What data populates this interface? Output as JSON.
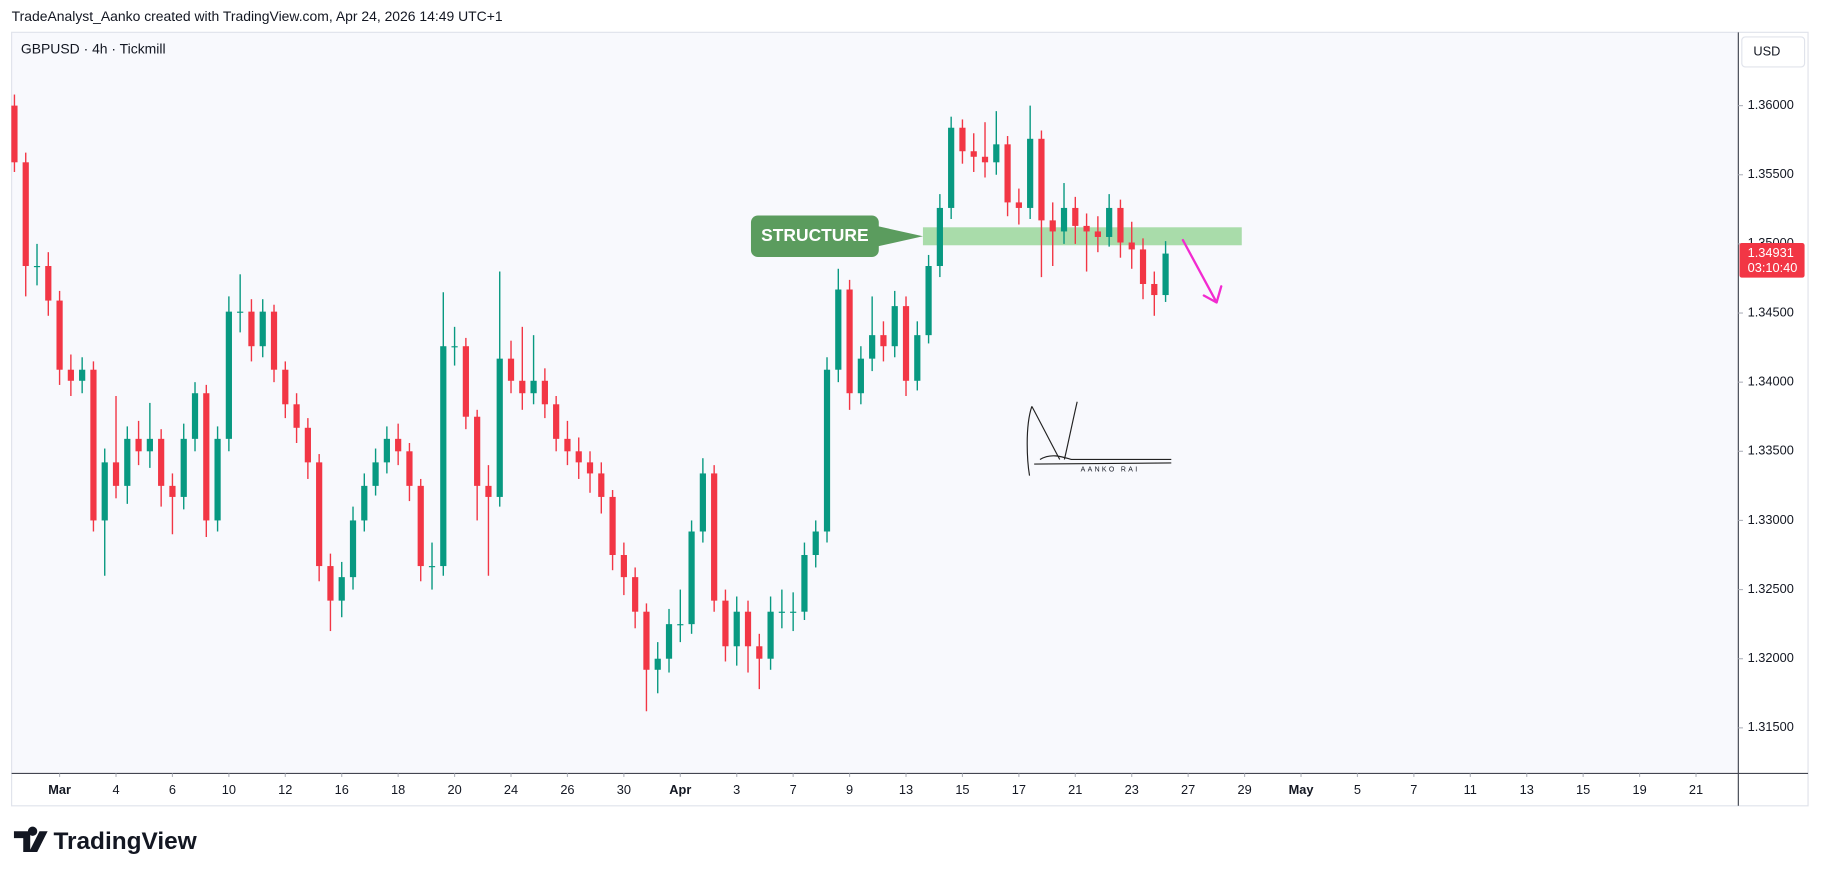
{
  "header": {
    "attribution": "TradeAnalyst_Aanko created with TradingView.com, Apr 24, 2026 14:49 UTC+1",
    "logo": "TradingView"
  },
  "chart_data": {
    "type": "candlestick",
    "title": "GBPUSD · 4h · Tickmill",
    "currency": "USD",
    "x": [
      -1.6,
      -1.2,
      -0.8,
      -0.4,
      0,
      0.4,
      0.8,
      1.2,
      1.6,
      2,
      2.4,
      2.8,
      3.2,
      3.6,
      4,
      4.4,
      4.8,
      5.2,
      5.6,
      6,
      6.4,
      6.8,
      7.2,
      7.6,
      8,
      8.4,
      8.8,
      9.2,
      9.6,
      10,
      10.4,
      10.8,
      11.2,
      11.6,
      12,
      12.4,
      12.8,
      13.2,
      13.6,
      14,
      14.4,
      14.8,
      15.2,
      15.6,
      16,
      16.4,
      16.8,
      17.2,
      17.6,
      18,
      18.4,
      18.8,
      19.2,
      19.6,
      20,
      20.4,
      20.8,
      21.2,
      21.6,
      22,
      22.4,
      22.8,
      23.2,
      23.6,
      24,
      24.4,
      24.8,
      25.2,
      25.6,
      26,
      26.4,
      26.8,
      27.2,
      27.6,
      28,
      28.4,
      28.8,
      29.2,
      29.6,
      30,
      30.4,
      30.8,
      31.2,
      31.6,
      32,
      32.4,
      32.8,
      33.2,
      33.6,
      34,
      34.4,
      34.8,
      35.2,
      35.6,
      36,
      36.4,
      36.8,
      37.2,
      37.6,
      38,
      38.4,
      38.8,
      39.2
    ],
    "open": [
      1.36,
      1.3559,
      1.3484,
      1.3484,
      1.3459,
      1.3409,
      1.3401,
      1.3409,
      1.33,
      1.3342,
      1.3325,
      1.3359,
      1.335,
      1.3359,
      1.3325,
      1.3317,
      1.3359,
      1.3392,
      1.33,
      1.3359,
      1.3451,
      1.3451,
      1.3426,
      1.3451,
      1.3409,
      1.3384,
      1.3367,
      1.3342,
      1.3267,
      1.3242,
      1.3259,
      1.33,
      1.3325,
      1.3342,
      1.3359,
      1.335,
      1.3325,
      1.3267,
      1.3267,
      1.3426,
      1.3426,
      1.3375,
      1.3325,
      1.3317,
      1.3417,
      1.3401,
      1.3392,
      1.3401,
      1.3384,
      1.3359,
      1.335,
      1.3342,
      1.3334,
      1.3317,
      1.3275,
      1.3259,
      1.3234,
      1.3192,
      1.32,
      1.3225,
      1.3225,
      1.3292,
      1.3334,
      1.3242,
      1.3209,
      1.3234,
      1.3209,
      1.32,
      1.3234,
      1.3234,
      1.3234,
      1.3275,
      1.3292,
      1.3409,
      1.3467,
      1.3392,
      1.3417,
      1.3434,
      1.3426,
      1.3455,
      1.3401,
      1.3434,
      1.3484,
      1.3526,
      1.3584,
      1.3567,
      1.3563,
      1.3559,
      1.3572,
      1.353,
      1.3526,
      1.3576,
      1.3517,
      1.3509,
      1.3526,
      1.3513,
      1.3509,
      1.3505,
      1.3526,
      1.3501,
      1.3496,
      1.3471,
      1.3463
    ],
    "high": [
      1.3608,
      1.3566,
      1.35,
      1.3494,
      1.3466,
      1.342,
      1.3418,
      1.3415,
      1.3352,
      1.339,
      1.3368,
      1.3372,
      1.3385,
      1.3366,
      1.3334,
      1.337,
      1.34,
      1.3398,
      1.3368,
      1.3462,
      1.3478,
      1.346,
      1.346,
      1.3456,
      1.3415,
      1.3392,
      1.3374,
      1.3348,
      1.3276,
      1.327,
      1.331,
      1.3334,
      1.3352,
      1.3368,
      1.337,
      1.3356,
      1.333,
      1.3284,
      1.3465,
      1.344,
      1.3432,
      1.338,
      1.334,
      1.348,
      1.343,
      1.344,
      1.3434,
      1.341,
      1.339,
      1.3372,
      1.336,
      1.335,
      1.3342,
      1.3322,
      1.3284,
      1.3266,
      1.324,
      1.3212,
      1.3236,
      1.325,
      1.33,
      1.3345,
      1.334,
      1.325,
      1.3245,
      1.3242,
      1.3218,
      1.3245,
      1.325,
      1.3248,
      1.3284,
      1.33,
      1.3418,
      1.3482,
      1.3474,
      1.3426,
      1.3462,
      1.3444,
      1.3466,
      1.3462,
      1.3444,
      1.3492,
      1.3536,
      1.3592,
      1.359,
      1.358,
      1.3588,
      1.3596,
      1.3578,
      1.354,
      1.36,
      1.3582,
      1.353,
      1.3544,
      1.3534,
      1.3522,
      1.352,
      1.3536,
      1.3532,
      1.3516,
      1.3504,
      1.348,
      1.3502
    ],
    "low": [
      1.3552,
      1.3462,
      1.347,
      1.3448,
      1.3398,
      1.339,
      1.3392,
      1.3292,
      1.326,
      1.3316,
      1.3312,
      1.334,
      1.3338,
      1.331,
      1.329,
      1.3308,
      1.335,
      1.3288,
      1.3292,
      1.335,
      1.3436,
      1.3415,
      1.3418,
      1.34,
      1.3374,
      1.3356,
      1.333,
      1.3256,
      1.322,
      1.323,
      1.325,
      1.3292,
      1.3318,
      1.3334,
      1.334,
      1.3314,
      1.3256,
      1.325,
      1.326,
      1.3412,
      1.3366,
      1.33,
      1.326,
      1.331,
      1.3392,
      1.338,
      1.3384,
      1.3374,
      1.335,
      1.334,
      1.333,
      1.332,
      1.3305,
      1.3264,
      1.3246,
      1.3222,
      1.3162,
      1.3175,
      1.319,
      1.3212,
      1.3218,
      1.3284,
      1.3234,
      1.3198,
      1.3195,
      1.319,
      1.3178,
      1.3192,
      1.3222,
      1.322,
      1.3228,
      1.3266,
      1.3284,
      1.34,
      1.338,
      1.3384,
      1.3408,
      1.3415,
      1.3418,
      1.339,
      1.3394,
      1.3428,
      1.3476,
      1.3518,
      1.3558,
      1.3552,
      1.3548,
      1.355,
      1.352,
      1.3514,
      1.3518,
      1.3476,
      1.3484,
      1.35,
      1.35,
      1.348,
      1.3494,
      1.3498,
      1.349,
      1.3482,
      1.346,
      1.3448,
      1.3458
    ],
    "close": [
      1.3559,
      1.3484,
      1.3484,
      1.3459,
      1.3409,
      1.3401,
      1.3409,
      1.33,
      1.3342,
      1.3325,
      1.3359,
      1.335,
      1.3359,
      1.3325,
      1.3317,
      1.3359,
      1.3392,
      1.33,
      1.3359,
      1.3451,
      1.3451,
      1.3426,
      1.3451,
      1.3409,
      1.3384,
      1.3367,
      1.3342,
      1.3267,
      1.3242,
      1.3259,
      1.33,
      1.3325,
      1.3342,
      1.3359,
      1.335,
      1.3325,
      1.3267,
      1.3267,
      1.3426,
      1.3426,
      1.3375,
      1.3325,
      1.3317,
      1.3417,
      1.3401,
      1.3392,
      1.3401,
      1.3384,
      1.3359,
      1.335,
      1.3342,
      1.3334,
      1.3317,
      1.3275,
      1.3259,
      1.3234,
      1.3192,
      1.32,
      1.3225,
      1.3225,
      1.3292,
      1.3334,
      1.3242,
      1.3209,
      1.3234,
      1.3209,
      1.32,
      1.3234,
      1.3234,
      1.3234,
      1.3275,
      1.3292,
      1.3409,
      1.3467,
      1.3392,
      1.3417,
      1.3434,
      1.3426,
      1.3455,
      1.3401,
      1.3434,
      1.3484,
      1.3526,
      1.3584,
      1.3567,
      1.3563,
      1.3559,
      1.3572,
      1.353,
      1.3526,
      1.3576,
      1.3517,
      1.3509,
      1.3526,
      1.3513,
      1.3509,
      1.3505,
      1.3526,
      1.3501,
      1.3496,
      1.3471,
      1.3463,
      1.3493
    ],
    "up_color": "#089981",
    "down_color": "#f23645",
    "xlim": [
      -1.7,
      59.5
    ],
    "xticks": [
      {
        "value": 0,
        "label": "Mar"
      },
      {
        "value": 2,
        "label": "4"
      },
      {
        "value": 4,
        "label": "6"
      },
      {
        "value": 6,
        "label": "10"
      },
      {
        "value": 8,
        "label": "12"
      },
      {
        "value": 10,
        "label": "16"
      },
      {
        "value": 12,
        "label": "18"
      },
      {
        "value": 14,
        "label": "20"
      },
      {
        "value": 16,
        "label": "24"
      },
      {
        "value": 18,
        "label": "26"
      },
      {
        "value": 20,
        "label": "30"
      },
      {
        "value": 22,
        "label": "Apr"
      },
      {
        "value": 24,
        "label": "3"
      },
      {
        "value": 26,
        "label": "7"
      },
      {
        "value": 28,
        "label": "9"
      },
      {
        "value": 30,
        "label": "13"
      },
      {
        "value": 32,
        "label": "15"
      },
      {
        "value": 34,
        "label": "17"
      },
      {
        "value": 36,
        "label": "21"
      },
      {
        "value": 38,
        "label": "23"
      },
      {
        "value": 40,
        "label": "27"
      },
      {
        "value": 42,
        "label": "29"
      },
      {
        "value": 44,
        "label": "May"
      },
      {
        "value": 46,
        "label": "5"
      },
      {
        "value": 48,
        "label": "7"
      },
      {
        "value": 50,
        "label": "11"
      },
      {
        "value": 52,
        "label": "13"
      },
      {
        "value": 54,
        "label": "15"
      },
      {
        "value": 56,
        "label": "19"
      },
      {
        "value": 58,
        "label": "21"
      }
    ],
    "ylim": [
      1.3117,
      1.3653
    ],
    "yticks": [
      {
        "value": 1.36,
        "label": "1.36000"
      },
      {
        "value": 1.355,
        "label": "1.35500"
      },
      {
        "value": 1.35,
        "label": "1.35000"
      },
      {
        "value": 1.345,
        "label": "1.34500"
      },
      {
        "value": 1.34,
        "label": "1.34000"
      },
      {
        "value": 1.335,
        "label": "1.33500"
      },
      {
        "value": 1.33,
        "label": "1.33000"
      },
      {
        "value": 1.325,
        "label": "1.32500"
      },
      {
        "value": 1.32,
        "label": "1.32000"
      },
      {
        "value": 1.315,
        "label": "1.31500"
      }
    ],
    "grid": false,
    "last_price": {
      "value": 1.34931,
      "label": "1.34931",
      "countdown": "03:10:40",
      "color": "#f23645"
    },
    "zone": {
      "label": "STRUCTURE",
      "xlim": [
        30.6,
        41.9
      ],
      "ylim": [
        1.3499,
        1.3512
      ],
      "color": "#a9dcaa",
      "label_color": "#5b9c5e"
    },
    "signature": "AANKO RAI"
  }
}
